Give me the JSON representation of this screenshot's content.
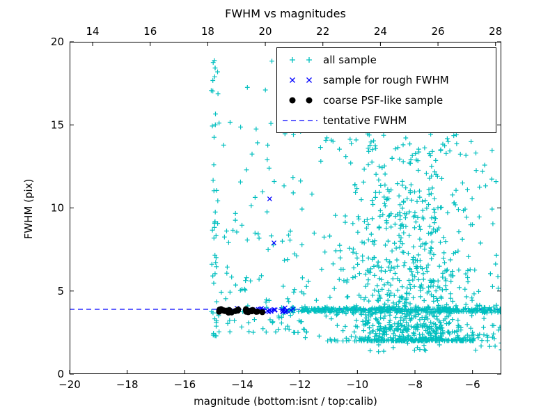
{
  "figure": {
    "title": "FWHM vs magnitudes",
    "xlabel": "magnitude (bottom:isnt / top:calib)",
    "ylabel": "FWHM (pix)"
  },
  "axes": {
    "x_bottom": {
      "min": -20,
      "max": -5,
      "ticks": [
        -20,
        -18,
        -16,
        -14,
        -12,
        -10,
        -8,
        -6
      ]
    },
    "x_top": {
      "min": 13.2,
      "max": 28.2,
      "ticks": [
        14,
        16,
        18,
        20,
        22,
        24,
        26,
        28
      ]
    },
    "y": {
      "min": 0,
      "max": 20,
      "ticks": [
        0,
        5,
        10,
        15,
        20
      ]
    }
  },
  "legend": {
    "entries": [
      {
        "label": "all sample",
        "marker": "plus",
        "color": "#00bfbf"
      },
      {
        "label": "sample for rough FWHM",
        "marker": "cross",
        "color": "#0000ff"
      },
      {
        "label": "coarse PSF-like sample",
        "marker": "dot",
        "color": "#000000"
      },
      {
        "label": "tentative FWHM",
        "marker": "dashed-line",
        "color": "#0000ff"
      }
    ]
  },
  "style": {
    "marker_cyan": "#00bfbf",
    "marker_blue": "#0000ff",
    "marker_black": "#000000",
    "dashed_line_color": "#0000ff",
    "axes_color": "#000000",
    "background": "#ffffff"
  },
  "chart_data": {
    "type": "scatter",
    "title": "FWHM vs magnitudes",
    "xlabel": "magnitude (bottom:isnt / top:calib)",
    "ylabel": "FWHM (pix)",
    "xlim_bottom": [
      -20,
      -5
    ],
    "xlim_top": [
      13.2,
      28.2
    ],
    "ylim": [
      0,
      20
    ],
    "grid": false,
    "legend_position": "upper right",
    "tentative_fwhm": 3.9,
    "seed": 7,
    "series": [
      {
        "name": "all sample",
        "marker": "plus",
        "color": "#00bfbf",
        "clusters": [
          {
            "n": 52,
            "x": {
              "d": "g",
              "m": -14.95,
              "s": 0.07,
              "a": -15.15,
              "b": -14.72
            },
            "y": {
              "d": "p",
              "a": 2.3,
              "b": 19.0,
              "p": 1.5
            }
          },
          {
            "n": 115,
            "x": {
              "d": "u",
              "a": -14.75,
              "b": -11.7
            },
            "y": {
              "d": "p",
              "a": 2.5,
              "b": 15.5,
              "p": 2.3
            }
          },
          {
            "n": 380,
            "x": {
              "d": "u",
              "a": -12.6,
              "b": -5.0
            },
            "y": {
              "d": "g",
              "m": 3.85,
              "s": 0.09
            }
          },
          {
            "n": 1000,
            "x": {
              "d": "g",
              "m": -8.15,
              "s": 1.35,
              "a": -11.9,
              "b": -4.95
            },
            "y": {
              "d": "p",
              "a": 2.0,
              "b": 14.5,
              "p": 2.6
            }
          },
          {
            "n": 14,
            "x": {
              "d": "u",
              "a": -13.9,
              "b": -5.3
            },
            "y": {
              "d": "u",
              "a": 13.5,
              "b": 19.3
            }
          },
          {
            "n": 55,
            "x": {
              "d": "u",
              "a": -9.6,
              "b": -5.0
            },
            "y": {
              "d": "u",
              "a": 1.3,
              "b": 3.1
            }
          }
        ],
        "points": []
      },
      {
        "name": "sample for rough FWHM",
        "marker": "cross",
        "color": "#0000ff",
        "clusters": [
          {
            "n": 26,
            "x": {
              "d": "u",
              "a": -13.55,
              "b": -12.15
            },
            "y": {
              "d": "g",
              "m": 3.87,
              "s": 0.07
            }
          },
          {
            "n": 8,
            "x": {
              "d": "u",
              "a": -14.6,
              "b": -13.5
            },
            "y": {
              "d": "g",
              "m": 3.85,
              "s": 0.06
            }
          }
        ],
        "points": [
          [
            -13.05,
            10.55
          ],
          [
            -12.9,
            7.9
          ]
        ]
      },
      {
        "name": "coarse PSF-like sample",
        "marker": "dot",
        "color": "#000000",
        "clusters": [
          {
            "n": 22,
            "x": {
              "d": "u",
              "a": -14.85,
              "b": -13.0
            },
            "y": {
              "d": "g",
              "m": 3.82,
              "s": 0.07
            }
          },
          {
            "n": 8,
            "x": {
              "d": "g",
              "m": -14.5,
              "s": 0.12
            },
            "y": {
              "d": "g",
              "m": 3.8,
              "s": 0.06
            }
          }
        ],
        "points": []
      }
    ]
  }
}
